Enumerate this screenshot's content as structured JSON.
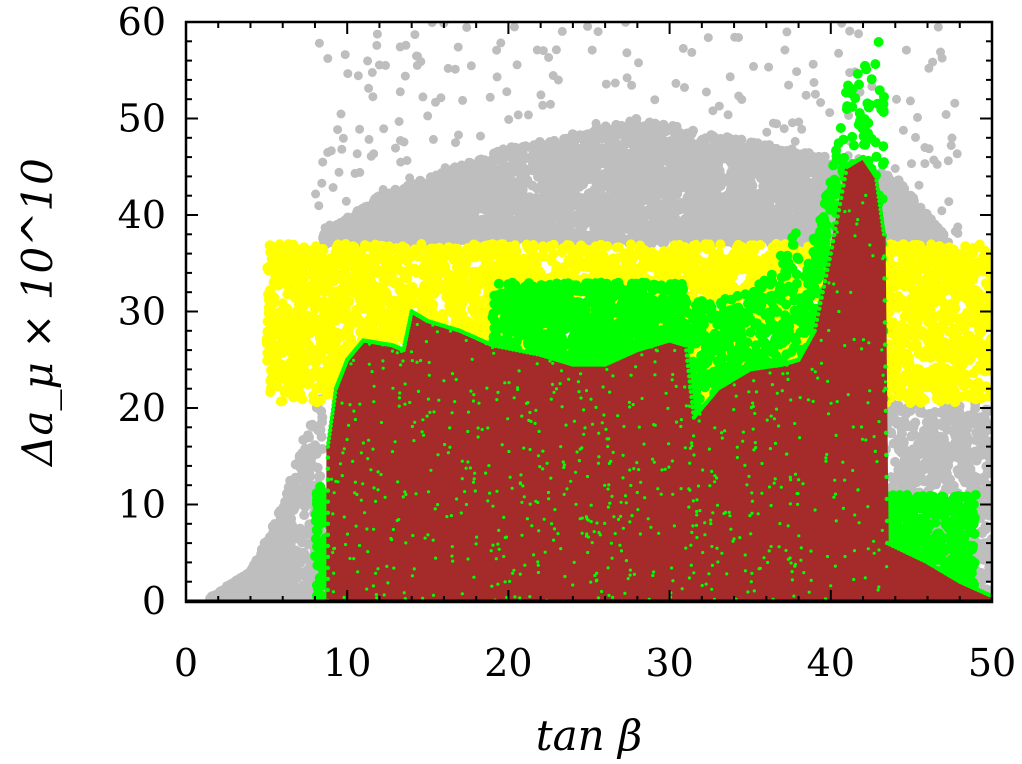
{
  "chart_data": {
    "type": "scatter",
    "title": "",
    "xlabel": "tan β",
    "ylabel": "Δa_μ × 10^10",
    "xlim": [
      0,
      50
    ],
    "ylim": [
      0,
      60
    ],
    "xticks": [
      0,
      10,
      20,
      30,
      40,
      50
    ],
    "yticks": [
      0,
      10,
      20,
      30,
      40,
      50,
      60
    ],
    "x_tick_labels": [
      "0",
      "10",
      "20",
      "30",
      "40",
      "50"
    ],
    "y_tick_labels": [
      "0",
      "10",
      "20",
      "30",
      "40",
      "50",
      "60"
    ],
    "grid": false,
    "legend": "none",
    "colors": {
      "gray": "#bebebe",
      "yellow": "#ffff00",
      "green": "#00ff00",
      "brown": "#a52a2a",
      "zero_line": "#000000"
    },
    "horizontal_line": {
      "y": 0
    },
    "series": [
      {
        "color_key": "gray",
        "regions": [
          {
            "x": [
              1.5,
              8.5
            ],
            "y_top_at_x": [
              [
                1.5,
                0.5
              ],
              [
                4,
                3
              ],
              [
                6,
                10
              ],
              [
                7.5,
                18
              ],
              [
                8.5,
                24
              ]
            ],
            "y_bottom": 0
          },
          {
            "x": [
              8.5,
              47
            ],
            "y_bottom": 37,
            "y_top_at_x": [
              [
                8.5,
                38
              ],
              [
                12,
                42
              ],
              [
                20,
                47
              ],
              [
                28,
                50
              ],
              [
                34,
                48
              ],
              [
                40,
                46
              ],
              [
                44,
                44
              ],
              [
                47,
                38
              ]
            ]
          },
          {
            "x": [
              43,
              50
            ],
            "y_bottom": 0,
            "y_top": 20.5
          }
        ],
        "sparse_range": {
          "x": [
            8,
            48
          ],
          "y": [
            37,
            60
          ]
        }
      },
      {
        "color_key": "yellow",
        "regions": [
          {
            "x": [
              5,
              50
            ],
            "y_bottom": 20.5,
            "y_top": 37
          }
        ]
      },
      {
        "color_key": "green",
        "regions": [
          {
            "x": [
              8,
              9.5
            ],
            "y_bottom": 0,
            "y_top": 12
          },
          {
            "x": [
              19,
              31
            ],
            "y_bottom": 24,
            "y_top": 33
          },
          {
            "x": [
              31,
              38
            ],
            "y_bottom": 16,
            "y_top_at_x": [
              [
                31,
                31
              ],
              [
                35,
                32
              ],
              [
                37,
                36
              ],
              [
                38,
                39
              ]
            ]
          },
          {
            "x": [
              38,
              43.3
            ],
            "y_bottom": 20,
            "y_top_at_x": [
              [
                38,
                32
              ],
              [
                40,
                44
              ],
              [
                41,
                54
              ],
              [
                42,
                55
              ],
              [
                43,
                59
              ],
              [
                43.3,
                55
              ]
            ]
          },
          {
            "x": [
              43.5,
              49
            ],
            "y_bottom": 0,
            "y_top": 11
          }
        ]
      },
      {
        "color_key": "brown",
        "envelope": [
          [
            8.8,
            0
          ],
          [
            8.8,
            16
          ],
          [
            9.3,
            22
          ],
          [
            10,
            25
          ],
          [
            11,
            27
          ],
          [
            12.8,
            26.5
          ],
          [
            13.5,
            26
          ],
          [
            14,
            30
          ],
          [
            15,
            29
          ],
          [
            17,
            28
          ],
          [
            19,
            26.5
          ],
          [
            22,
            25.5
          ],
          [
            24,
            24.5
          ],
          [
            26,
            24.5
          ],
          [
            28,
            26
          ],
          [
            30,
            27
          ],
          [
            31,
            26.5
          ],
          [
            31.5,
            19
          ],
          [
            33,
            22
          ],
          [
            35,
            24
          ],
          [
            37,
            24.5
          ],
          [
            38,
            25
          ],
          [
            39,
            28
          ],
          [
            40,
            36
          ],
          [
            41,
            45
          ],
          [
            42,
            46
          ],
          [
            42.8,
            44
          ],
          [
            43.3,
            38
          ],
          [
            43.5,
            6
          ],
          [
            46,
            4
          ],
          [
            48,
            2
          ],
          [
            50,
            0.5
          ],
          [
            50,
            0
          ]
        ]
      }
    ]
  }
}
